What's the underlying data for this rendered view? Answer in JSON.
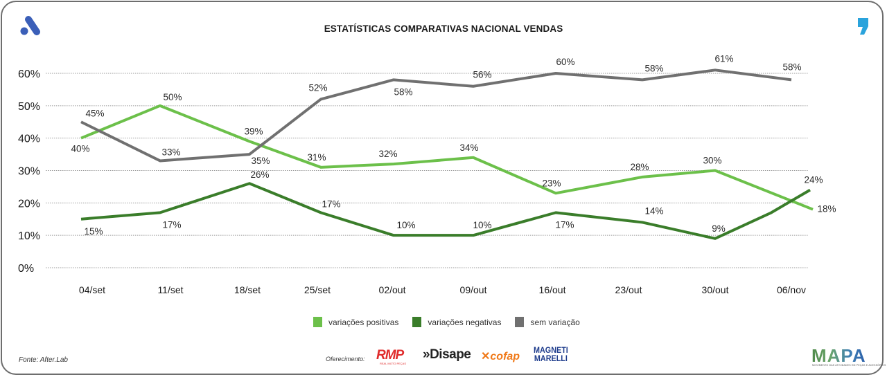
{
  "header": {
    "title": "ESTATÍSTICAS COMPARATIVAS NACIONAL VENDAS",
    "left_logo_icon": "brand-a-logo-icon",
    "right_logo_icon": "comma-logo-icon",
    "colors": {
      "left_logo": "#3b5fb8",
      "right_logo": "#2aa3dc"
    }
  },
  "chart_data": {
    "type": "line",
    "title": "ESTATÍSTICAS COMPARATIVAS NACIONAL VENDAS",
    "xlabel": "",
    "ylabel": "",
    "categories": [
      "04/set",
      "11/set",
      "18/set",
      "25/set",
      "02/out",
      "09/out",
      "16/out",
      "23/out",
      "30/out",
      "06/nov"
    ],
    "y_ticks": [
      "0%",
      "10%",
      "20%",
      "30%",
      "40%",
      "50%",
      "60%"
    ],
    "ylim": [
      0,
      60
    ],
    "grid": true,
    "legend_position": "bottom-center",
    "series": [
      {
        "name": "variações positivas",
        "color": "#6cc04a",
        "values": [
          40,
          50,
          39,
          31,
          32,
          34,
          23,
          28,
          30,
          18
        ],
        "labels": [
          "40%",
          "50%",
          "39%",
          "31%",
          "32%",
          "34%",
          "23%",
          "28%",
          "30%",
          "18%"
        ]
      },
      {
        "name": "variações negativas",
        "color": "#3a7d2a",
        "values": [
          15,
          17,
          26,
          17,
          10,
          10,
          17,
          14,
          9,
          24
        ],
        "labels": [
          "15%",
          "17%",
          "26%",
          "17%",
          "10%",
          "10%",
          "17%",
          "14%",
          "9%",
          "24%"
        ]
      },
      {
        "name": "sem variação",
        "color": "#707070",
        "values": [
          45,
          33,
          35,
          52,
          58,
          56,
          60,
          58,
          61,
          58
        ],
        "labels": [
          "45%",
          "33%",
          "35%",
          "52%",
          "58%",
          "56%",
          "60%",
          "58%",
          "61%",
          "58%"
        ]
      }
    ]
  },
  "legend": {
    "items": [
      {
        "label": "variações positivas",
        "color": "#6cc04a"
      },
      {
        "label": "variações negativas",
        "color": "#3a7d2a"
      },
      {
        "label": "sem variação",
        "color": "#707070"
      }
    ]
  },
  "footer": {
    "source": "Fonte: After.Lab",
    "sponsor_label": "Oferecimento:",
    "sponsors": {
      "rmp": "RMP",
      "rmp_sub": "REAL MOTO PEÇAS",
      "disape": "»Disape",
      "cofap": "cofap",
      "magneti_line1": "MAGNETI",
      "magneti_line2": "MARELLI"
    },
    "mapa": "MAPA",
    "mapa_sub": "MOVIMENTO DAS ATIVIDADES EM PEÇAS E ACESSÓRIOS"
  }
}
